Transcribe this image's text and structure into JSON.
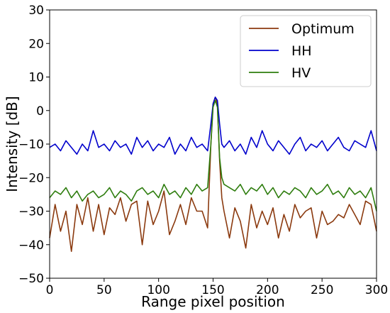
{
  "chart_data": {
    "type": "line",
    "title": "",
    "xlabel": "Range pixel position",
    "ylabel": "Intensity [dB]",
    "xlim": [
      0,
      300
    ],
    "ylim": [
      -50,
      30
    ],
    "xticks": [
      "0",
      "50",
      "100",
      "150",
      "200",
      "250",
      "300"
    ],
    "yticks": [
      "-50",
      "-40",
      "-30",
      "-20",
      "-10",
      "0",
      "10",
      "20",
      "30"
    ],
    "grid": false,
    "legend_position": "top-right",
    "series": [
      {
        "name": "Optimum",
        "color": "#8b3a0f",
        "x": [
          0,
          5,
          10,
          15,
          20,
          25,
          30,
          35,
          40,
          45,
          50,
          55,
          60,
          65,
          70,
          75,
          80,
          85,
          90,
          95,
          100,
          105,
          110,
          115,
          120,
          125,
          130,
          135,
          140,
          145,
          148,
          150,
          152,
          154,
          156,
          158,
          160,
          165,
          170,
          175,
          180,
          185,
          190,
          195,
          200,
          205,
          210,
          215,
          220,
          225,
          230,
          235,
          240,
          245,
          250,
          255,
          260,
          265,
          270,
          275,
          280,
          285,
          290,
          295,
          300
        ],
        "y": [
          -38,
          -28,
          -36,
          -30,
          -42,
          -28,
          -34,
          -26,
          -36,
          -28,
          -37,
          -29,
          -31,
          -26,
          -33,
          -28,
          -27,
          -40,
          -27,
          -34,
          -30,
          -24,
          -37,
          -33,
          -28,
          -34,
          -26,
          -30,
          -30,
          -35,
          -10,
          2,
          4,
          2,
          -15,
          -26,
          -30,
          -38,
          -29,
          -33,
          -41,
          -28,
          -35,
          -30,
          -34,
          -29,
          -38,
          -31,
          -36,
          -28,
          -32,
          -30,
          -29,
          -38,
          -30,
          -34,
          -33,
          -31,
          -32,
          -28,
          -31,
          -34,
          -27,
          -28,
          -36
        ]
      },
      {
        "name": "HH",
        "color": "#0000cc",
        "x": [
          0,
          5,
          10,
          15,
          20,
          25,
          30,
          35,
          40,
          45,
          50,
          55,
          60,
          65,
          70,
          75,
          80,
          85,
          90,
          95,
          100,
          105,
          110,
          115,
          120,
          125,
          130,
          135,
          140,
          145,
          148,
          150,
          152,
          154,
          156,
          158,
          160,
          165,
          170,
          175,
          180,
          185,
          190,
          195,
          200,
          205,
          210,
          215,
          220,
          225,
          230,
          235,
          240,
          245,
          250,
          255,
          260,
          265,
          270,
          275,
          280,
          285,
          290,
          295,
          300
        ],
        "y": [
          -11,
          -10,
          -12,
          -9,
          -11,
          -13,
          -10,
          -12,
          -6,
          -11,
          -10,
          -12,
          -9,
          -11,
          -10,
          -13,
          -8,
          -11,
          -9,
          -12,
          -10,
          -11,
          -8,
          -13,
          -10,
          -12,
          -8,
          -11,
          -10,
          -12,
          -4,
          2,
          4,
          3,
          -4,
          -10,
          -11,
          -9,
          -12,
          -10,
          -13,
          -8,
          -11,
          -6,
          -10,
          -12,
          -9,
          -11,
          -13,
          -10,
          -8,
          -12,
          -10,
          -11,
          -9,
          -12,
          -10,
          -8,
          -11,
          -12,
          -9,
          -10,
          -11,
          -6,
          -12
        ]
      },
      {
        "name": "HV",
        "color": "#2e7d0e",
        "x": [
          0,
          5,
          10,
          15,
          20,
          25,
          30,
          35,
          40,
          45,
          50,
          55,
          60,
          65,
          70,
          75,
          80,
          85,
          90,
          95,
          100,
          105,
          110,
          115,
          120,
          125,
          130,
          135,
          140,
          145,
          148,
          150,
          152,
          154,
          156,
          158,
          160,
          165,
          170,
          175,
          180,
          185,
          190,
          195,
          200,
          205,
          210,
          215,
          220,
          225,
          230,
          235,
          240,
          245,
          250,
          255,
          260,
          265,
          270,
          275,
          280,
          285,
          290,
          295,
          300
        ],
        "y": [
          -26,
          -24,
          -25,
          -23,
          -26,
          -24,
          -27,
          -25,
          -24,
          -26,
          -25,
          -23,
          -26,
          -24,
          -25,
          -27,
          -24,
          -23,
          -25,
          -24,
          -26,
          -22,
          -25,
          -24,
          -26,
          -23,
          -25,
          -22,
          -24,
          -23,
          -10,
          1,
          3,
          1,
          -14,
          -20,
          -22,
          -23,
          -24,
          -22,
          -25,
          -23,
          -24,
          -22,
          -25,
          -23,
          -26,
          -24,
          -25,
          -23,
          -24,
          -26,
          -23,
          -25,
          -24,
          -22,
          -25,
          -24,
          -26,
          -23,
          -25,
          -24,
          -26,
          -23,
          -30
        ]
      }
    ]
  }
}
